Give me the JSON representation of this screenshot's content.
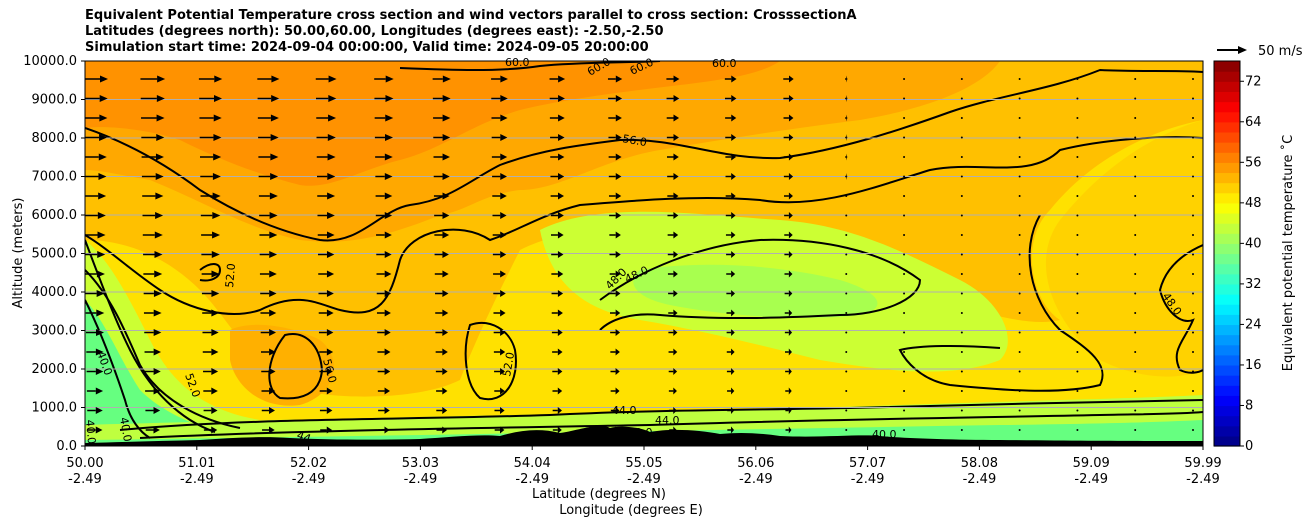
{
  "title_lines": [
    "Equivalent Potential Temperature cross section and wind vectors parallel to cross section: CrosssectionA",
    "Latitudes (degrees north): 50.00,60.00, Longitudes (degrees east): -2.50,-2.50",
    "Simulation start time: 2024-09-04 00:00:00, Valid time: 2024-09-05 20:00:00"
  ],
  "chart_data": {
    "type": "contour",
    "ylabel": "Altitude (meters)",
    "xlabel_line1": "Latitude (degrees N)",
    "xlabel_line2": "Longitude (degrees E)",
    "ylim": [
      0,
      10000
    ],
    "yticks": [
      "0.0",
      "1000.0",
      "2000.0",
      "3000.0",
      "4000.0",
      "5000.0",
      "6000.0",
      "7000.0",
      "8000.0",
      "9000.0",
      "10000.0"
    ],
    "xticks_lat": [
      "50.00",
      "51.01",
      "52.02",
      "53.03",
      "54.04",
      "55.05",
      "56.06",
      "57.07",
      "58.08",
      "59.09",
      "59.99"
    ],
    "xticks_lon": [
      "-2.49",
      "-2.49",
      "-2.49",
      "-2.49",
      "-2.49",
      "-2.49",
      "-2.49",
      "-2.49",
      "-2.49",
      "-2.49",
      "-2.49"
    ],
    "grid": "horizontal",
    "colorbar": {
      "label": "Equivalent potential temperature ˚C",
      "ticks": [
        "0",
        "8",
        "16",
        "24",
        "32",
        "40",
        "48",
        "56",
        "64",
        "72"
      ],
      "range": [
        0,
        76
      ],
      "colormap": "jet"
    },
    "contour_labels": [
      "60.0",
      "60.0",
      "60.0",
      "60.0",
      "56.0",
      "52.0",
      "56.0",
      "52.0",
      "52.0",
      "48.0",
      "48.0",
      "48.0",
      "44.0",
      "44.0",
      "40.0",
      "40.0",
      "40.0",
      "40.0",
      "44",
      "40.0"
    ],
    "quiver_key": "50 m/s",
    "colors": {
      "warm_core": "#ff9200",
      "mid_warm": "#ffc000",
      "mid": "#ffe100",
      "cool_mid": "#ccff33",
      "cool": "#66ff80",
      "terrain": "#000000"
    }
  }
}
